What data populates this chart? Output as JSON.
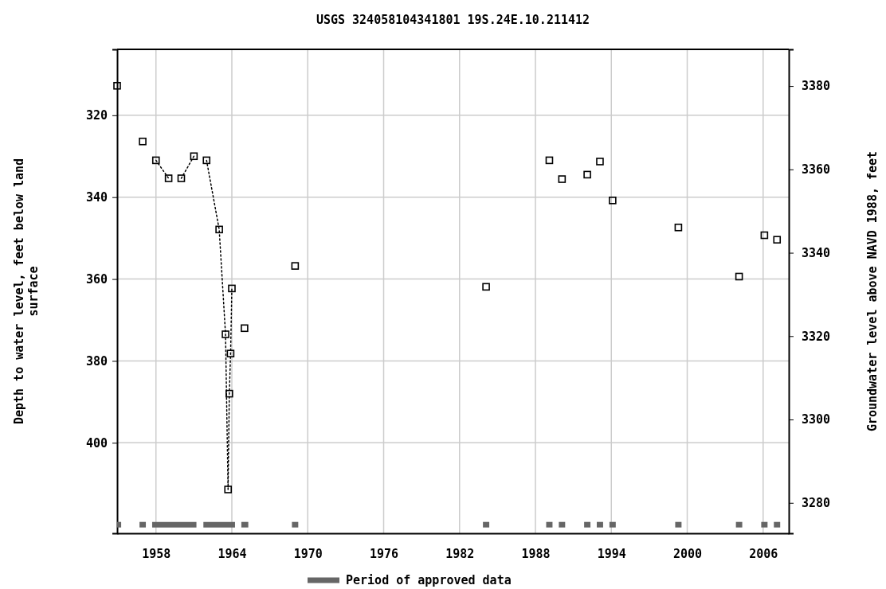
{
  "chart_data": {
    "type": "scatter",
    "title": "USGS 324058104341801 19S.24E.10.211412",
    "ylabel": "Depth to water level, feet below land\nsurface",
    "y2label": "Groundwater level above NAVD 1988, feet",
    "xlim": [
      1954.93,
      2008.03
    ],
    "xticks": [
      1958,
      1964,
      1970,
      1976,
      1982,
      1988,
      1994,
      2000,
      2006
    ],
    "ylim": [
      422.1,
      303.9
    ],
    "yticks": [
      320,
      340,
      360,
      380,
      400
    ],
    "y2lim": [
      3272.7,
      3388.8
    ],
    "y2ticks": [
      3280,
      3300,
      3320,
      3340,
      3360,
      3380
    ],
    "grid": true,
    "legend": "bottom",
    "marker": "square",
    "series": [
      {
        "color": "#000000",
        "x": [
          1954.93,
          1956.95,
          1958.0,
          1959.0,
          1960.0,
          1961.0,
          1962.0,
          1963.0,
          1963.5,
          1963.7,
          1963.8,
          1963.9,
          1964.0,
          1965.0,
          1969.0,
          1984.1,
          1989.1,
          1990.1,
          1992.1,
          1993.1,
          1994.1,
          1999.3,
          2004.1,
          2006.1,
          2007.1
        ],
        "values": [
          312.8,
          326.4,
          331.0,
          335.4,
          335.4,
          330.0,
          331.0,
          347.9,
          373.5,
          411.4,
          388.0,
          378.2,
          362.3,
          372.0,
          356.8,
          361.9,
          331.0,
          335.6,
          334.5,
          331.3,
          340.8,
          347.4,
          359.4,
          349.3,
          350.4
        ]
      },
      {
        "type": "line",
        "line_style": "dotted",
        "marker": "none",
        "color": "#000000",
        "x": [
          1958.0,
          1959.0
        ],
        "values": [
          331.0,
          335.4
        ]
      },
      {
        "type": "line",
        "line_style": "dotted",
        "marker": "none",
        "color": "#000000",
        "x": [
          1960.0,
          1961.0
        ],
        "values": [
          335.4,
          330.0
        ]
      },
      {
        "type": "line",
        "line_style": "dotted",
        "marker": "none",
        "color": "#000000",
        "x": [
          1962.0,
          1963.0,
          1963.5,
          1963.7,
          1963.8,
          1963.9,
          1964.0
        ],
        "values": [
          331.0,
          347.9,
          373.5,
          411.4,
          388.0,
          378.2,
          362.3
        ]
      },
      {
        "type": "line",
        "name": "Period of approved data",
        "line_style": "solid",
        "marker": "none",
        "color": "#666666",
        "x": [
          1954.93,
          1955.25
        ],
        "values": [
          420,
          420
        ]
      },
      {
        "type": "line",
        "line_style": "solid",
        "marker": "none",
        "color": "#666666",
        "x": [
          1956.7,
          1957.2
        ],
        "values": [
          420,
          420
        ]
      },
      {
        "type": "line",
        "line_style": "solid",
        "marker": "none",
        "color": "#666666",
        "x": [
          1957.7,
          1961.2
        ],
        "values": [
          420,
          420
        ]
      },
      {
        "type": "line",
        "line_style": "solid",
        "marker": "none",
        "color": "#666666",
        "x": [
          1961.75,
          1964.25
        ],
        "values": [
          420,
          420
        ]
      },
      {
        "type": "line",
        "line_style": "solid",
        "marker": "none",
        "color": "#666666",
        "x": [
          1964.75,
          1965.3
        ],
        "values": [
          420,
          420
        ]
      },
      {
        "type": "line",
        "line_style": "solid",
        "marker": "none",
        "color": "#666666",
        "x": [
          1968.75,
          1969.25
        ],
        "values": [
          420,
          420
        ]
      },
      {
        "type": "line",
        "line_style": "solid",
        "marker": "none",
        "color": "#666666",
        "x": [
          1983.85,
          1984.35
        ],
        "values": [
          420,
          420
        ]
      },
      {
        "type": "line",
        "line_style": "solid",
        "marker": "none",
        "color": "#666666",
        "x": [
          1988.85,
          1989.35
        ],
        "values": [
          420,
          420
        ]
      },
      {
        "type": "line",
        "line_style": "solid",
        "marker": "none",
        "color": "#666666",
        "x": [
          1989.85,
          1990.35
        ],
        "values": [
          420,
          420
        ]
      },
      {
        "type": "line",
        "line_style": "solid",
        "marker": "none",
        "color": "#666666",
        "x": [
          1991.85,
          1992.35
        ],
        "values": [
          420,
          420
        ]
      },
      {
        "type": "line",
        "line_style": "solid",
        "marker": "none",
        "color": "#666666",
        "x": [
          1992.85,
          1993.35
        ],
        "values": [
          420,
          420
        ]
      },
      {
        "type": "line",
        "line_style": "solid",
        "marker": "none",
        "color": "#666666",
        "x": [
          1993.85,
          1994.35
        ],
        "values": [
          420,
          420
        ]
      },
      {
        "type": "line",
        "line_style": "solid",
        "marker": "none",
        "color": "#666666",
        "x": [
          1999.05,
          1999.55
        ],
        "values": [
          420,
          420
        ]
      },
      {
        "type": "line",
        "line_style": "solid",
        "marker": "none",
        "color": "#666666",
        "x": [
          2003.85,
          2004.35
        ],
        "values": [
          420,
          420
        ]
      },
      {
        "type": "line",
        "line_style": "solid",
        "marker": "none",
        "color": "#666666",
        "x": [
          2005.85,
          2006.35
        ],
        "values": [
          420,
          420
        ]
      },
      {
        "type": "line",
        "line_style": "solid",
        "marker": "none",
        "color": "#666666",
        "x": [
          2006.85,
          2007.35
        ],
        "values": [
          420,
          420
        ]
      }
    ]
  }
}
